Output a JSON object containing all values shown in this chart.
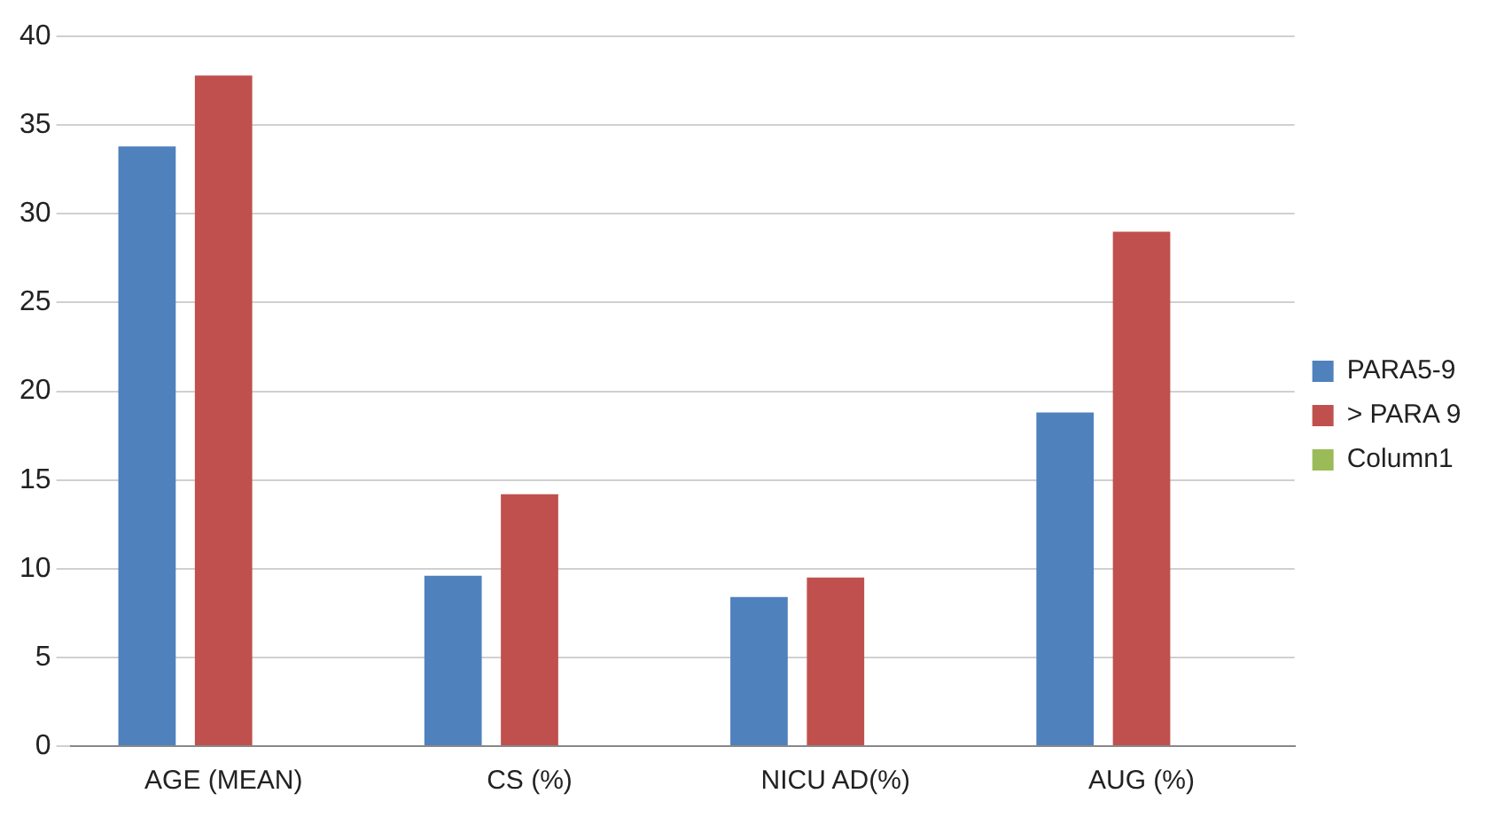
{
  "chart_data": {
    "type": "bar",
    "categories": [
      "AGE (MEAN)",
      "CS (%)",
      "NICU AD(%)",
      "AUG (%)"
    ],
    "series": [
      {
        "name": "PARA5-9",
        "color": "#4f81bd",
        "values": [
          33.8,
          9.6,
          8.4,
          18.8
        ]
      },
      {
        "name": "> PARA 9",
        "color": "#c0504d",
        "values": [
          37.8,
          14.2,
          9.5,
          29.0
        ]
      },
      {
        "name": "Column1",
        "color": "#9bbb59",
        "values": [
          null,
          null,
          null,
          null
        ]
      }
    ],
    "ylim": [
      0,
      40
    ],
    "yticks": [
      0,
      5,
      10,
      15,
      20,
      25,
      30,
      35,
      40
    ],
    "grid": "y",
    "legend": "right"
  }
}
